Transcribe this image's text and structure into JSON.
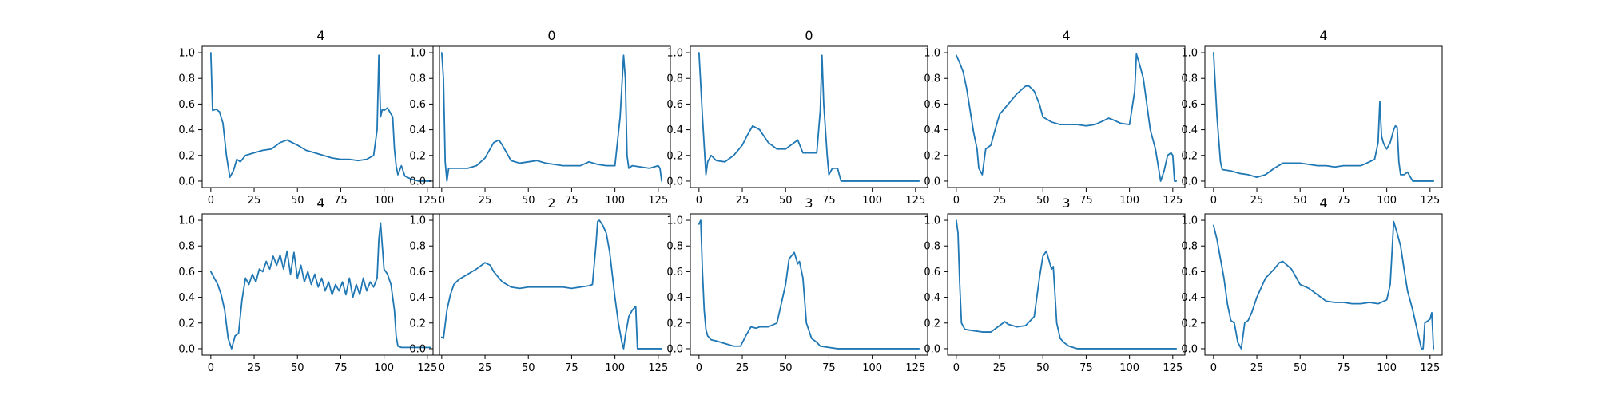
{
  "figure": {
    "line_color": "#1f77b4"
  },
  "chart_data": [
    {
      "type": "line",
      "title": "4",
      "xlabel": "",
      "ylabel": "",
      "xlim": [
        -5,
        132
      ],
      "ylim": [
        -0.05,
        1.05
      ],
      "xticks": [
        0,
        25,
        50,
        75,
        100,
        125
      ],
      "yticks": [
        0.0,
        0.2,
        0.4,
        0.6,
        0.8,
        1.0
      ],
      "grid": false,
      "x": [
        0,
        1,
        3,
        5,
        7,
        9,
        11,
        13,
        15,
        17,
        20,
        25,
        30,
        35,
        40,
        44,
        50,
        55,
        60,
        65,
        70,
        75,
        80,
        85,
        90,
        94,
        96,
        97,
        98,
        99,
        100,
        102,
        105,
        106,
        107,
        108,
        110,
        112,
        115,
        120,
        127
      ],
      "y": [
        1.0,
        0.55,
        0.56,
        0.54,
        0.45,
        0.2,
        0.03,
        0.08,
        0.17,
        0.15,
        0.2,
        0.22,
        0.24,
        0.25,
        0.3,
        0.32,
        0.28,
        0.24,
        0.22,
        0.2,
        0.18,
        0.17,
        0.17,
        0.16,
        0.17,
        0.2,
        0.4,
        0.98,
        0.5,
        0.56,
        0.55,
        0.57,
        0.5,
        0.25,
        0.12,
        0.05,
        0.12,
        0.04,
        0.02,
        0.0,
        0.0
      ]
    },
    {
      "type": "line",
      "title": "0",
      "xlabel": "",
      "ylabel": "",
      "xlim": [
        -5,
        132
      ],
      "ylim": [
        -0.05,
        1.05
      ],
      "xticks": [
        0,
        25,
        50,
        75,
        100,
        125
      ],
      "yticks": [
        0.0,
        0.2,
        0.4,
        0.6,
        0.8,
        1.0
      ],
      "grid": false,
      "x": [
        0,
        1,
        2,
        3,
        4,
        5,
        10,
        15,
        20,
        25,
        30,
        33,
        35,
        40,
        45,
        50,
        55,
        60,
        65,
        70,
        75,
        80,
        85,
        90,
        95,
        100,
        103,
        105,
        106,
        107,
        108,
        110,
        115,
        120,
        125,
        126,
        127
      ],
      "y": [
        1.0,
        0.8,
        0.15,
        0.0,
        0.1,
        0.1,
        0.1,
        0.1,
        0.12,
        0.18,
        0.3,
        0.32,
        0.28,
        0.16,
        0.14,
        0.15,
        0.16,
        0.14,
        0.13,
        0.12,
        0.12,
        0.12,
        0.15,
        0.13,
        0.12,
        0.12,
        0.5,
        0.98,
        0.8,
        0.2,
        0.1,
        0.12,
        0.11,
        0.1,
        0.12,
        0.1,
        0.0
      ]
    },
    {
      "type": "line",
      "title": "0",
      "xlabel": "",
      "ylabel": "",
      "xlim": [
        -5,
        132
      ],
      "ylim": [
        -0.05,
        1.05
      ],
      "xticks": [
        0,
        25,
        50,
        75,
        100,
        125
      ],
      "yticks": [
        0.0,
        0.2,
        0.4,
        0.6,
        0.8,
        1.0
      ],
      "grid": false,
      "x": [
        0,
        2,
        4,
        5,
        7,
        10,
        15,
        20,
        25,
        28,
        31,
        35,
        40,
        45,
        50,
        55,
        57,
        60,
        65,
        68,
        70,
        71,
        72,
        74,
        75,
        77,
        80,
        82,
        127
      ],
      "y": [
        1.0,
        0.5,
        0.05,
        0.15,
        0.2,
        0.16,
        0.15,
        0.2,
        0.28,
        0.36,
        0.43,
        0.4,
        0.3,
        0.25,
        0.25,
        0.3,
        0.32,
        0.22,
        0.22,
        0.22,
        0.55,
        0.98,
        0.6,
        0.2,
        0.05,
        0.1,
        0.1,
        0.0,
        0.0
      ]
    },
    {
      "type": "line",
      "title": "4",
      "xlabel": "",
      "ylabel": "",
      "xlim": [
        -5,
        132
      ],
      "ylim": [
        -0.05,
        1.05
      ],
      "xticks": [
        0,
        25,
        50,
        75,
        100,
        125
      ],
      "yticks": [
        0.0,
        0.2,
        0.4,
        0.6,
        0.8,
        1.0
      ],
      "grid": false,
      "x": [
        0,
        2,
        4,
        6,
        8,
        10,
        12,
        13,
        15,
        17,
        20,
        22,
        25,
        30,
        35,
        40,
        42,
        45,
        48,
        50,
        55,
        60,
        70,
        75,
        80,
        85,
        88,
        90,
        95,
        100,
        103,
        104,
        106,
        108,
        110,
        112,
        115,
        118,
        120,
        122,
        123,
        124,
        125,
        126,
        127
      ],
      "y": [
        0.98,
        0.92,
        0.85,
        0.72,
        0.55,
        0.38,
        0.25,
        0.1,
        0.05,
        0.25,
        0.28,
        0.38,
        0.52,
        0.6,
        0.68,
        0.74,
        0.74,
        0.7,
        0.6,
        0.5,
        0.46,
        0.44,
        0.44,
        0.43,
        0.44,
        0.47,
        0.49,
        0.48,
        0.45,
        0.44,
        0.7,
        0.99,
        0.9,
        0.8,
        0.6,
        0.4,
        0.25,
        0.0,
        0.08,
        0.2,
        0.21,
        0.22,
        0.2,
        0.0,
        0.0
      ]
    },
    {
      "type": "line",
      "title": "4",
      "xlabel": "",
      "ylabel": "",
      "xlim": [
        -5,
        132
      ],
      "ylim": [
        -0.05,
        1.05
      ],
      "xticks": [
        0,
        25,
        50,
        75,
        100,
        125
      ],
      "yticks": [
        0.0,
        0.2,
        0.4,
        0.6,
        0.8,
        1.0
      ],
      "grid": false,
      "x": [
        0,
        2,
        4,
        5,
        10,
        15,
        20,
        25,
        30,
        35,
        40,
        45,
        50,
        55,
        60,
        65,
        70,
        75,
        80,
        85,
        90,
        93,
        95,
        96,
        97,
        98,
        99,
        100,
        102,
        104,
        105,
        106,
        107,
        108,
        110,
        112,
        115,
        120,
        127
      ],
      "y": [
        1.0,
        0.5,
        0.15,
        0.09,
        0.08,
        0.06,
        0.05,
        0.03,
        0.05,
        0.1,
        0.14,
        0.14,
        0.14,
        0.13,
        0.12,
        0.12,
        0.11,
        0.12,
        0.12,
        0.12,
        0.15,
        0.17,
        0.3,
        0.62,
        0.35,
        0.3,
        0.27,
        0.25,
        0.3,
        0.4,
        0.43,
        0.42,
        0.15,
        0.05,
        0.05,
        0.07,
        0.0,
        0.0,
        0.0
      ]
    },
    {
      "type": "line",
      "title": "4",
      "xlabel": "",
      "ylabel": "",
      "xlim": [
        -5,
        132
      ],
      "ylim": [
        -0.05,
        1.05
      ],
      "xticks": [
        0,
        25,
        50,
        75,
        100,
        125
      ],
      "yticks": [
        0.0,
        0.2,
        0.4,
        0.6,
        0.8,
        1.0
      ],
      "grid": false,
      "x": [
        0,
        2,
        4,
        6,
        8,
        10,
        12,
        14,
        16,
        18,
        20,
        22,
        24,
        26,
        28,
        30,
        32,
        34,
        36,
        38,
        40,
        42,
        44,
        46,
        48,
        50,
        52,
        54,
        56,
        58,
        60,
        62,
        64,
        66,
        68,
        70,
        72,
        74,
        76,
        78,
        80,
        82,
        84,
        86,
        88,
        90,
        92,
        94,
        96,
        97,
        98,
        99,
        100,
        102,
        104,
        106,
        107,
        108,
        110,
        127
      ],
      "y": [
        0.6,
        0.55,
        0.5,
        0.42,
        0.3,
        0.08,
        0.0,
        0.1,
        0.12,
        0.38,
        0.55,
        0.5,
        0.58,
        0.52,
        0.62,
        0.6,
        0.68,
        0.62,
        0.72,
        0.65,
        0.73,
        0.62,
        0.76,
        0.58,
        0.75,
        0.55,
        0.65,
        0.52,
        0.6,
        0.5,
        0.58,
        0.48,
        0.55,
        0.45,
        0.52,
        0.42,
        0.5,
        0.45,
        0.52,
        0.42,
        0.55,
        0.4,
        0.5,
        0.42,
        0.55,
        0.45,
        0.52,
        0.48,
        0.55,
        0.85,
        0.98,
        0.8,
        0.62,
        0.58,
        0.5,
        0.3,
        0.1,
        0.02,
        0.01,
        0.01
      ]
    },
    {
      "type": "line",
      "title": "2",
      "xlabel": "",
      "ylabel": "",
      "xlim": [
        -5,
        132
      ],
      "ylim": [
        -0.05,
        1.05
      ],
      "xticks": [
        0,
        25,
        50,
        75,
        100,
        125
      ],
      "yticks": [
        0.0,
        0.2,
        0.4,
        0.6,
        0.8,
        1.0
      ],
      "grid": false,
      "x": [
        0,
        1,
        3,
        5,
        7,
        10,
        15,
        20,
        25,
        28,
        30,
        35,
        40,
        45,
        50,
        55,
        60,
        65,
        70,
        75,
        80,
        85,
        87,
        89,
        90,
        91,
        93,
        95,
        97,
        100,
        102,
        104,
        105,
        106,
        108,
        110,
        112,
        113,
        115,
        127
      ],
      "y": [
        0.09,
        0.08,
        0.3,
        0.42,
        0.5,
        0.54,
        0.58,
        0.62,
        0.67,
        0.65,
        0.6,
        0.52,
        0.48,
        0.47,
        0.48,
        0.48,
        0.48,
        0.48,
        0.48,
        0.47,
        0.48,
        0.49,
        0.5,
        0.8,
        0.99,
        1.0,
        0.96,
        0.9,
        0.75,
        0.4,
        0.2,
        0.05,
        0.0,
        0.1,
        0.25,
        0.3,
        0.33,
        0.0,
        0.0,
        0.0
      ]
    },
    {
      "type": "line",
      "title": "3",
      "xlabel": "",
      "ylabel": "",
      "xlim": [
        -5,
        132
      ],
      "ylim": [
        -0.05,
        1.05
      ],
      "xticks": [
        0,
        25,
        50,
        75,
        100,
        125
      ],
      "yticks": [
        0.0,
        0.2,
        0.4,
        0.6,
        0.8,
        1.0
      ],
      "grid": false,
      "x": [
        0,
        1,
        2,
        3,
        4,
        5,
        7,
        10,
        15,
        20,
        24,
        27,
        30,
        33,
        35,
        40,
        45,
        50,
        52,
        55,
        57,
        58,
        60,
        62,
        65,
        68,
        70,
        75,
        80,
        127
      ],
      "y": [
        0.97,
        1.0,
        0.6,
        0.3,
        0.15,
        0.1,
        0.07,
        0.06,
        0.04,
        0.02,
        0.02,
        0.1,
        0.17,
        0.16,
        0.17,
        0.17,
        0.2,
        0.5,
        0.7,
        0.75,
        0.66,
        0.68,
        0.55,
        0.2,
        0.08,
        0.05,
        0.02,
        0.01,
        0.0,
        0.0
      ]
    },
    {
      "type": "line",
      "title": "3",
      "xlabel": "",
      "ylabel": "",
      "xlim": [
        -5,
        132
      ],
      "ylim": [
        -0.05,
        1.05
      ],
      "xticks": [
        0,
        25,
        50,
        75,
        100,
        125
      ],
      "yticks": [
        0.0,
        0.2,
        0.4,
        0.6,
        0.8,
        1.0
      ],
      "grid": false,
      "x": [
        0,
        1,
        2,
        3,
        5,
        10,
        15,
        20,
        25,
        28,
        30,
        35,
        40,
        45,
        48,
        50,
        52,
        55,
        56,
        58,
        60,
        62,
        65,
        70,
        75,
        127
      ],
      "y": [
        1.0,
        0.9,
        0.5,
        0.2,
        0.15,
        0.14,
        0.13,
        0.13,
        0.18,
        0.21,
        0.19,
        0.17,
        0.18,
        0.25,
        0.55,
        0.72,
        0.76,
        0.62,
        0.64,
        0.2,
        0.08,
        0.05,
        0.02,
        0.0,
        0.0,
        0.0
      ]
    },
    {
      "type": "line",
      "title": "4",
      "xlabel": "",
      "ylabel": "",
      "xlim": [
        -5,
        132
      ],
      "ylim": [
        -0.05,
        1.05
      ],
      "xticks": [
        0,
        25,
        50,
        75,
        100,
        125
      ],
      "yticks": [
        0.0,
        0.2,
        0.4,
        0.6,
        0.8,
        1.0
      ],
      "grid": false,
      "x": [
        0,
        2,
        4,
        6,
        8,
        10,
        12,
        14,
        16,
        18,
        20,
        22,
        25,
        30,
        35,
        38,
        40,
        45,
        50,
        55,
        60,
        65,
        70,
        75,
        80,
        85,
        90,
        95,
        100,
        102,
        104,
        106,
        108,
        110,
        112,
        115,
        118,
        120,
        121,
        122,
        125,
        126,
        127
      ],
      "y": [
        0.96,
        0.85,
        0.7,
        0.55,
        0.35,
        0.22,
        0.2,
        0.05,
        0.0,
        0.2,
        0.22,
        0.28,
        0.4,
        0.55,
        0.62,
        0.67,
        0.68,
        0.62,
        0.5,
        0.47,
        0.42,
        0.37,
        0.36,
        0.36,
        0.35,
        0.35,
        0.36,
        0.35,
        0.38,
        0.5,
        0.99,
        0.9,
        0.8,
        0.62,
        0.45,
        0.3,
        0.12,
        0.0,
        0.0,
        0.2,
        0.23,
        0.28,
        0.0
      ]
    }
  ]
}
